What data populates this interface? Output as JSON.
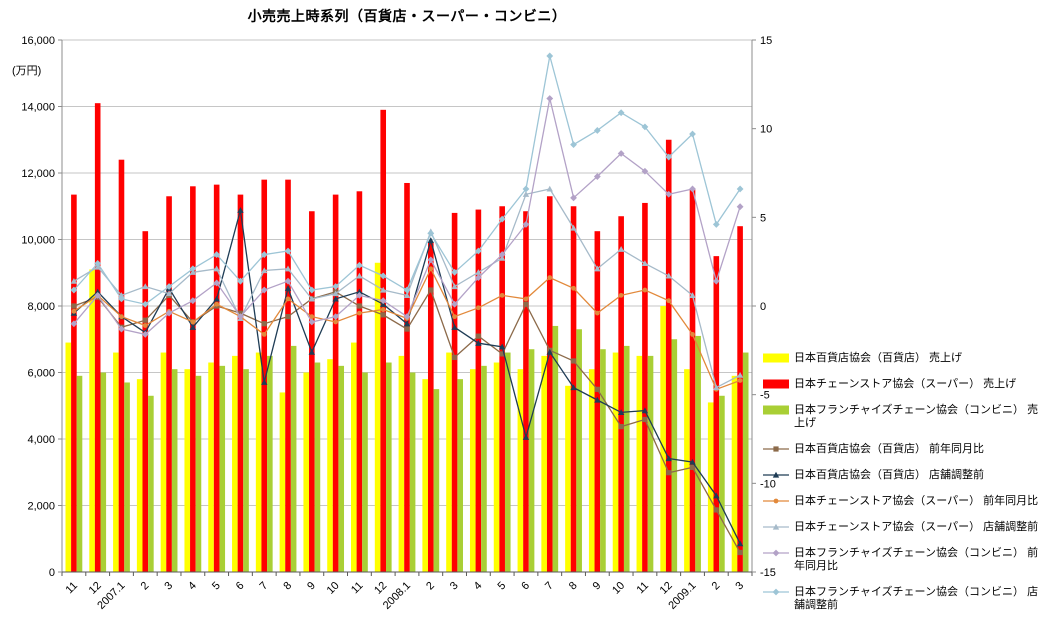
{
  "chart_data": {
    "type": "combo-bar-line",
    "title": "小売売上時系列（百貨店・スーパー・コンビニ）",
    "legend_position": "right",
    "grid": "on",
    "colors": {
      "grid": "#C6C6C6",
      "axis": "#8C8C8C",
      "baseline": "#595959",
      "text": "#000000",
      "background": "#FFFFFF"
    },
    "left_axis": {
      "unit": "(万円)",
      "min": 0,
      "max": 16000,
      "tick_step": 2000,
      "ticks": [
        "0",
        "2,000",
        "4,000",
        "6,000",
        "8,000",
        "10,000",
        "12,000",
        "14,000",
        "16,000"
      ]
    },
    "right_axis": {
      "min": -15,
      "max": 15,
      "tick_step": 5,
      "ticks": [
        "-15",
        "-10",
        "-5",
        "0",
        "5",
        "10",
        "15"
      ]
    },
    "categories": [
      "11",
      "12",
      "2007.1",
      "2",
      "3",
      "4",
      "5",
      "6",
      "7",
      "8",
      "9",
      "10",
      "11",
      "12",
      "2008.1",
      "2",
      "3",
      "4",
      "5",
      "6",
      "7",
      "8",
      "9",
      "10",
      "11",
      "12",
      "2009.1",
      "2",
      "3"
    ],
    "bar_series": [
      {
        "name": "日本百貨店協会（百貨店） 売上げ",
        "color": "#FFFF00",
        "axis": "left",
        "values": [
          6900,
          9100,
          6600,
          5800,
          6600,
          6100,
          6300,
          6500,
          6600,
          5400,
          6000,
          6400,
          6900,
          9300,
          6500,
          5800,
          6600,
          6100,
          6300,
          6100,
          6500,
          5600,
          6100,
          6600,
          6500,
          8000,
          6100,
          5100,
          5900
        ]
      },
      {
        "name": "日本チェーンストア協会（スーパー） 売上げ",
        "color": "#FF0000",
        "axis": "left",
        "values": [
          11350,
          14100,
          12400,
          10250,
          11300,
          11600,
          11650,
          11350,
          11800,
          11800,
          10850,
          11350,
          11450,
          13900,
          11700,
          9900,
          10800,
          10900,
          11000,
          10850,
          11300,
          11000,
          10250,
          10700,
          11100,
          13000,
          11500,
          9500,
          10400
        ]
      },
      {
        "name": "日本フランチャイズチェーン協会（コンビニ） 売上げ",
        "color": "#A9CF35",
        "axis": "left",
        "values": [
          5900,
          6000,
          5700,
          5300,
          6100,
          5900,
          6200,
          6100,
          6500,
          6800,
          6300,
          6200,
          6000,
          6300,
          6000,
          5500,
          5800,
          6200,
          6600,
          6700,
          7400,
          7300,
          6700,
          6800,
          6500,
          7000,
          7100,
          5300,
          6600
        ]
      }
    ],
    "line_series": [
      {
        "name": "日本百貨店協会（百貨店） 前年同月比",
        "color": "#8C6A4A",
        "marker": "square",
        "axis": "right",
        "values": [
          0.0,
          0.5,
          -1.2,
          -0.8,
          0.6,
          -0.9,
          0.0,
          -0.4,
          -1.0,
          -0.6,
          0.4,
          0.8,
          0.0,
          -0.5,
          -1.3,
          0.9,
          -2.9,
          -1.7,
          -2.7,
          0.1,
          -2.5,
          -3.1,
          -4.7,
          -6.8,
          -6.4,
          -9.4,
          -9.1,
          -11.5,
          -13.9
        ]
      },
      {
        "name": "日本百貨店協会（百貨店） 店舗調整前",
        "color": "#1E3C55",
        "marker": "triangle",
        "axis": "right",
        "values": [
          -0.4,
          0.8,
          -0.6,
          -1.5,
          1.0,
          -1.2,
          0.4,
          5.4,
          -4.3,
          1.0,
          -2.6,
          0.4,
          0.8,
          0.1,
          -1.0,
          3.7,
          -1.2,
          -2.1,
          -2.3,
          -7.4,
          -2.6,
          -4.6,
          -5.3,
          -6.0,
          -5.9,
          -8.6,
          -8.8,
          -10.7,
          -13.4
        ]
      },
      {
        "name": "日本チェーンストア協会（スーパー） 前年同月比",
        "color": "#E2893B",
        "marker": "circle",
        "axis": "right",
        "values": [
          -0.3,
          0.6,
          -0.6,
          -1.1,
          -0.3,
          -0.9,
          0.1,
          -0.6,
          -1.6,
          0.4,
          -0.6,
          -0.9,
          -0.4,
          -0.2,
          -0.7,
          2.1,
          -0.6,
          -0.1,
          0.6,
          0.4,
          1.6,
          1.0,
          -0.4,
          0.6,
          0.9,
          0.3,
          -1.6,
          -4.7,
          -4.2
        ]
      },
      {
        "name": "日本チェーンストア協会（スーパー） 店舗調整前",
        "color": "#A6BAC9",
        "marker": "triangle",
        "axis": "right",
        "values": [
          1.4,
          2.2,
          0.6,
          1.1,
          0.7,
          1.9,
          2.1,
          -0.7,
          2.0,
          2.1,
          0.4,
          0.7,
          1.7,
          0.9,
          0.6,
          4.2,
          1.1,
          1.9,
          2.7,
          6.3,
          6.6,
          4.4,
          2.1,
          3.2,
          2.4,
          1.7,
          0.6,
          -4.6,
          -3.9
        ]
      },
      {
        "name": "日本フランチャイズチェーン協会（コンビニ） 前年同月比",
        "color": "#B3A2C7",
        "marker": "diamond",
        "axis": "right",
        "values": [
          -1.0,
          0.6,
          -1.3,
          -1.6,
          -0.4,
          0.3,
          1.3,
          -0.6,
          0.9,
          1.4,
          -0.9,
          -0.6,
          0.6,
          0.3,
          -0.6,
          2.6,
          0.1,
          1.6,
          2.9,
          4.6,
          11.7,
          6.1,
          7.3,
          8.6,
          7.6,
          6.3,
          6.6,
          1.4,
          5.6
        ]
      },
      {
        "name": "日本フランチャイズチェーン協会（コンビニ） 店舗調整前",
        "color": "#9DC5D6",
        "marker": "diamond",
        "axis": "right",
        "values": [
          0.9,
          2.4,
          0.4,
          0.1,
          1.1,
          2.1,
          2.9,
          1.4,
          2.9,
          3.1,
          0.9,
          1.1,
          2.3,
          1.7,
          0.9,
          4.1,
          1.9,
          3.1,
          4.9,
          6.6,
          14.1,
          9.1,
          9.9,
          10.9,
          10.1,
          8.4,
          9.7,
          4.6,
          6.6
        ]
      }
    ]
  }
}
